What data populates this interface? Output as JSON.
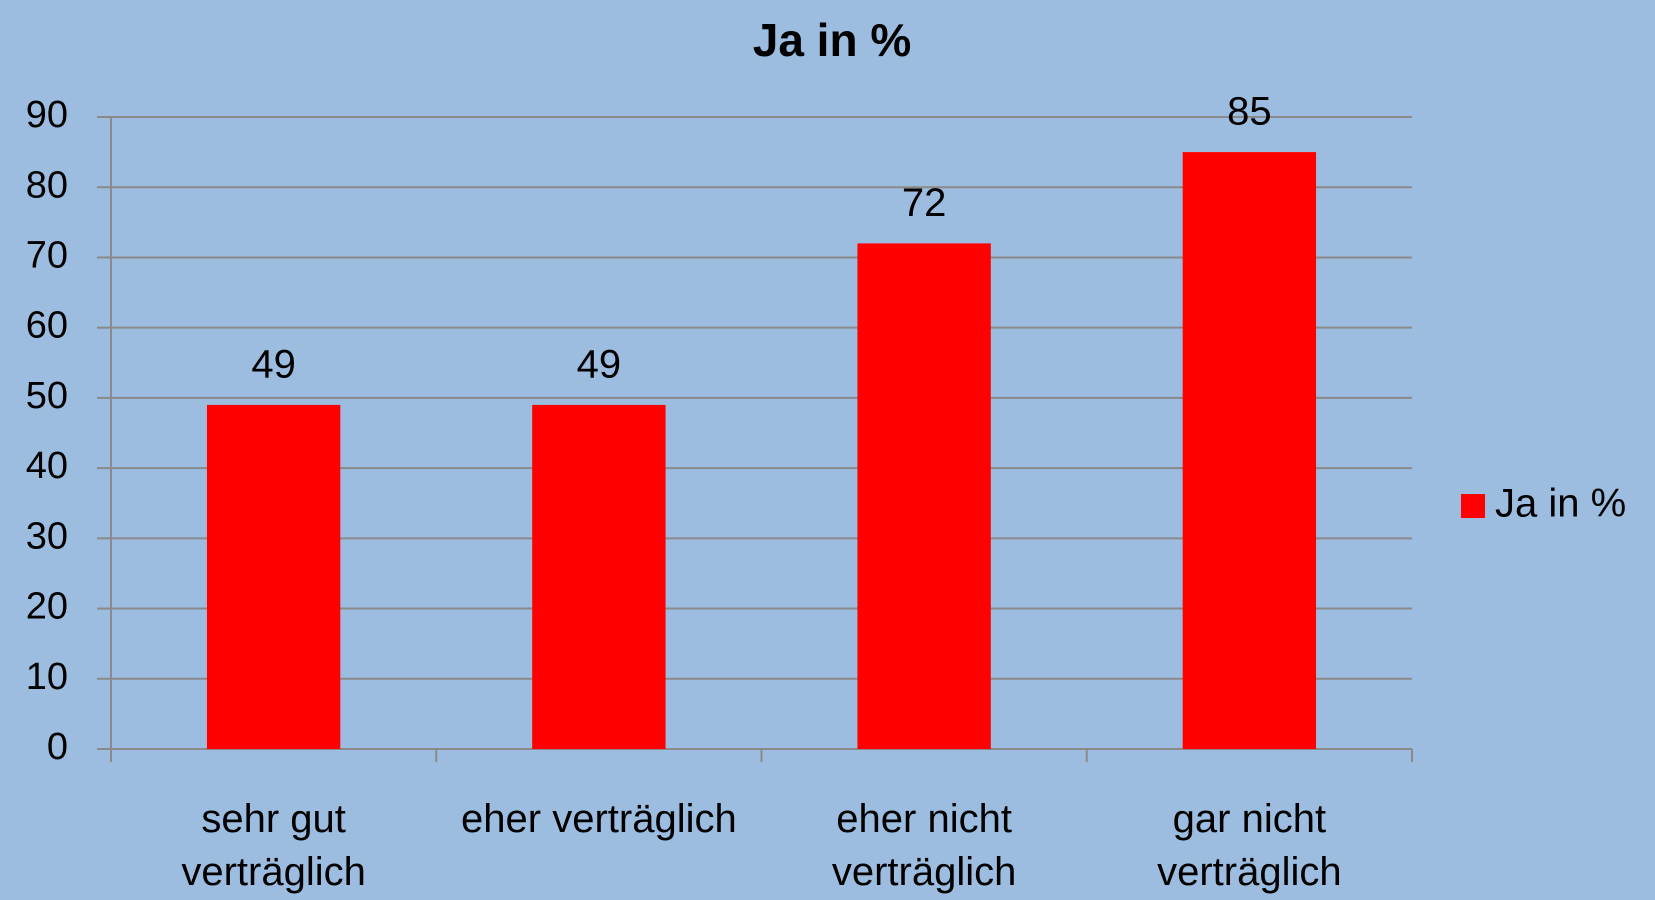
{
  "chart_data": {
    "type": "bar",
    "title": "Ja in %",
    "categories": [
      "sehr gut verträglich",
      "eher verträglich",
      "eher nicht verträglich",
      "gar nicht verträglich"
    ],
    "series": [
      {
        "name": "Ja in %",
        "color": "#ff0000",
        "values": [
          49,
          49,
          72,
          85
        ]
      }
    ],
    "ylim": [
      0,
      90
    ],
    "yticks": [
      0,
      10,
      20,
      30,
      40,
      50,
      60,
      70,
      80,
      90
    ],
    "grid": true,
    "legend": "right"
  }
}
